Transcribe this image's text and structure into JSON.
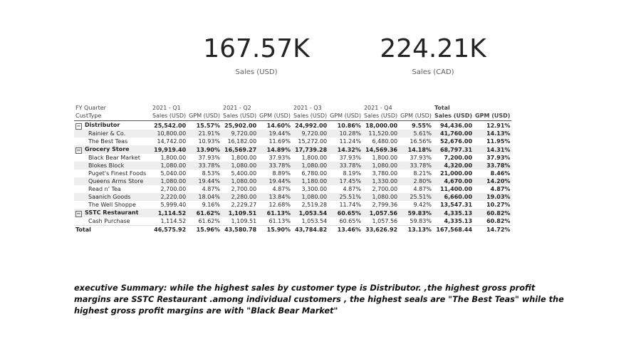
{
  "cards": [
    {
      "value": "167.57K",
      "label": "Sales (USD)"
    },
    {
      "value": "224.21K",
      "label": "Sales (CAD)"
    }
  ],
  "matrix": {
    "row_header_1": "FY Quarter",
    "row_header_2": "CustType",
    "quarters": [
      "2021 - Q1",
      "2021 - Q2",
      "2021 - Q3",
      "2021 - Q4",
      "Total"
    ],
    "measures": [
      "Sales (USD)",
      "GPM (USD)"
    ],
    "rows": [
      {
        "label": "Distributor",
        "level": "group",
        "cells": [
          "25,542.00",
          "15.57%",
          "25,902.00",
          "14.60%",
          "24,992.00",
          "10.86%",
          "18,000.00",
          "9.55%",
          "94,436.00",
          "12.91%"
        ]
      },
      {
        "label": "Rainier & Co.",
        "level": "child",
        "cells": [
          "10,800.00",
          "21.91%",
          "9,720.00",
          "19.44%",
          "9,720.00",
          "10.28%",
          "11,520.00",
          "5.61%",
          "41,760.00",
          "14.13%"
        ]
      },
      {
        "label": "The Best Teas",
        "level": "child",
        "cells": [
          "14,742.00",
          "10.93%",
          "16,182.00",
          "11.69%",
          "15,272.00",
          "11.24%",
          "6,480.00",
          "16.56%",
          "52,676.00",
          "11.95%"
        ]
      },
      {
        "label": "Grocery Store",
        "level": "group",
        "cells": [
          "19,919.40",
          "13.90%",
          "16,569.27",
          "14.89%",
          "17,739.28",
          "14.32%",
          "14,569.36",
          "14.18%",
          "68,797.31",
          "14.31%"
        ]
      },
      {
        "label": "Black Bear Market",
        "level": "child",
        "cells": [
          "1,800.00",
          "37.93%",
          "1,800.00",
          "37.93%",
          "1,800.00",
          "37.93%",
          "1,800.00",
          "37.93%",
          "7,200.00",
          "37.93%"
        ]
      },
      {
        "label": "Blokes Block",
        "level": "child",
        "cells": [
          "1,080.00",
          "33.78%",
          "1,080.00",
          "33.78%",
          "1,080.00",
          "33.78%",
          "1,080.00",
          "33.78%",
          "4,320.00",
          "33.78%"
        ]
      },
      {
        "label": "Puget's Finest Foods",
        "level": "child",
        "cells": [
          "5,040.00",
          "8.53%",
          "5,400.00",
          "8.89%",
          "6,780.00",
          "8.19%",
          "3,780.00",
          "8.21%",
          "21,000.00",
          "8.46%"
        ]
      },
      {
        "label": "Queens Arms Store",
        "level": "child",
        "cells": [
          "1,080.00",
          "19.44%",
          "1,080.00",
          "19.44%",
          "1,180.00",
          "17.45%",
          "1,330.00",
          "2.80%",
          "4,670.00",
          "14.20%"
        ]
      },
      {
        "label": "Read n' Tea",
        "level": "child",
        "cells": [
          "2,700.00",
          "4.87%",
          "2,700.00",
          "4.87%",
          "3,300.00",
          "4.87%",
          "2,700.00",
          "4.87%",
          "11,400.00",
          "4.87%"
        ]
      },
      {
        "label": "Saanich Goods",
        "level": "child",
        "cells": [
          "2,220.00",
          "18.04%",
          "2,280.00",
          "13.84%",
          "1,080.00",
          "25.51%",
          "1,080.00",
          "25.51%",
          "6,660.00",
          "19.03%"
        ]
      },
      {
        "label": "The Well Shoppe",
        "level": "child",
        "cells": [
          "5,999.40",
          "9.16%",
          "2,229.27",
          "12.68%",
          "2,519.28",
          "11.74%",
          "2,799.36",
          "9.42%",
          "13,547.31",
          "10.27%"
        ]
      },
      {
        "label": "SSTC Restaurant",
        "level": "group",
        "cells": [
          "1,114.52",
          "61.62%",
          "1,109.51",
          "61.13%",
          "1,053.54",
          "60.65%",
          "1,057.56",
          "59.83%",
          "4,335.13",
          "60.82%"
        ]
      },
      {
        "label": "Cash Purchase",
        "level": "child",
        "cells": [
          "1,114.52",
          "61.62%",
          "1,109.51",
          "61.13%",
          "1,053.54",
          "60.65%",
          "1,057.56",
          "59.83%",
          "4,335.13",
          "60.82%"
        ]
      },
      {
        "label": "Total",
        "level": "total",
        "cells": [
          "46,575.92",
          "15.96%",
          "43,580.78",
          "15.90%",
          "43,784.82",
          "13.46%",
          "33,626.92",
          "13.13%",
          "167,568.44",
          "14.72%"
        ]
      }
    ]
  },
  "summary": "executive Summary: while the highest sales by customer type is  Distributor. ,the highest gross profit margins are SSTC Restaurant .among individual customers , the highest seals are \"The Best Teas\" while the highest gross profit margins are with \"Black Bear Market\""
}
